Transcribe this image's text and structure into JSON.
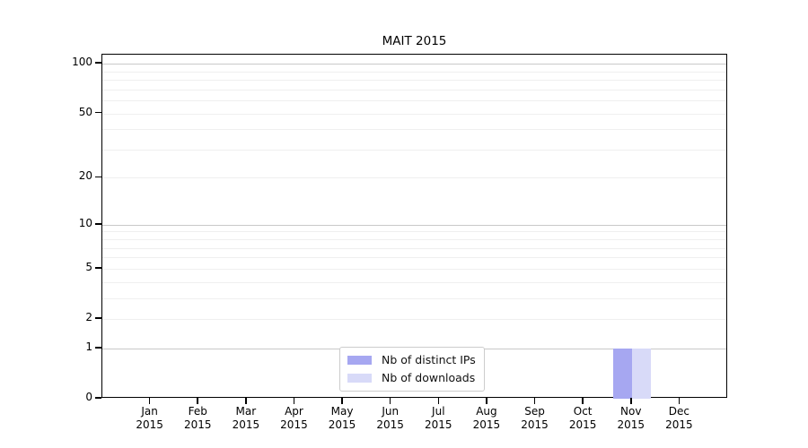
{
  "chart_data": {
    "type": "bar",
    "title": "MAIT 2015",
    "x_axis": {
      "months": [
        "Jan",
        "Feb",
        "Mar",
        "Apr",
        "May",
        "Jun",
        "Jul",
        "Aug",
        "Sep",
        "Oct",
        "Nov",
        "Dec"
      ],
      "year": "2015"
    },
    "y_axis": {
      "scale": "log1p",
      "ticks": [
        0,
        1,
        2,
        5,
        10,
        20,
        50,
        100
      ],
      "major_grid": [
        1,
        10,
        100
      ],
      "minor_grid": [
        2,
        3,
        4,
        5,
        6,
        7,
        8,
        9,
        20,
        30,
        40,
        50,
        60,
        70,
        80,
        90
      ],
      "ylim": [
        0,
        113.5
      ]
    },
    "series": [
      {
        "name": "Nb of distinct IPs",
        "slug": "distinct-ips",
        "color": "#a6a7f1",
        "values": [
          0,
          0,
          0,
          0,
          0,
          0,
          0,
          0,
          0,
          0,
          1,
          0
        ]
      },
      {
        "name": "Nb of downloads",
        "slug": "downloads",
        "color": "#d8daf8",
        "values": [
          0,
          0,
          0,
          0,
          0,
          0,
          0,
          0,
          0,
          0,
          1,
          0
        ]
      }
    ],
    "legend": {
      "position": "lower center"
    },
    "colors": {
      "spine": "#000000",
      "major_grid": "#c9c9c9",
      "minor_grid": "#efefef"
    }
  }
}
